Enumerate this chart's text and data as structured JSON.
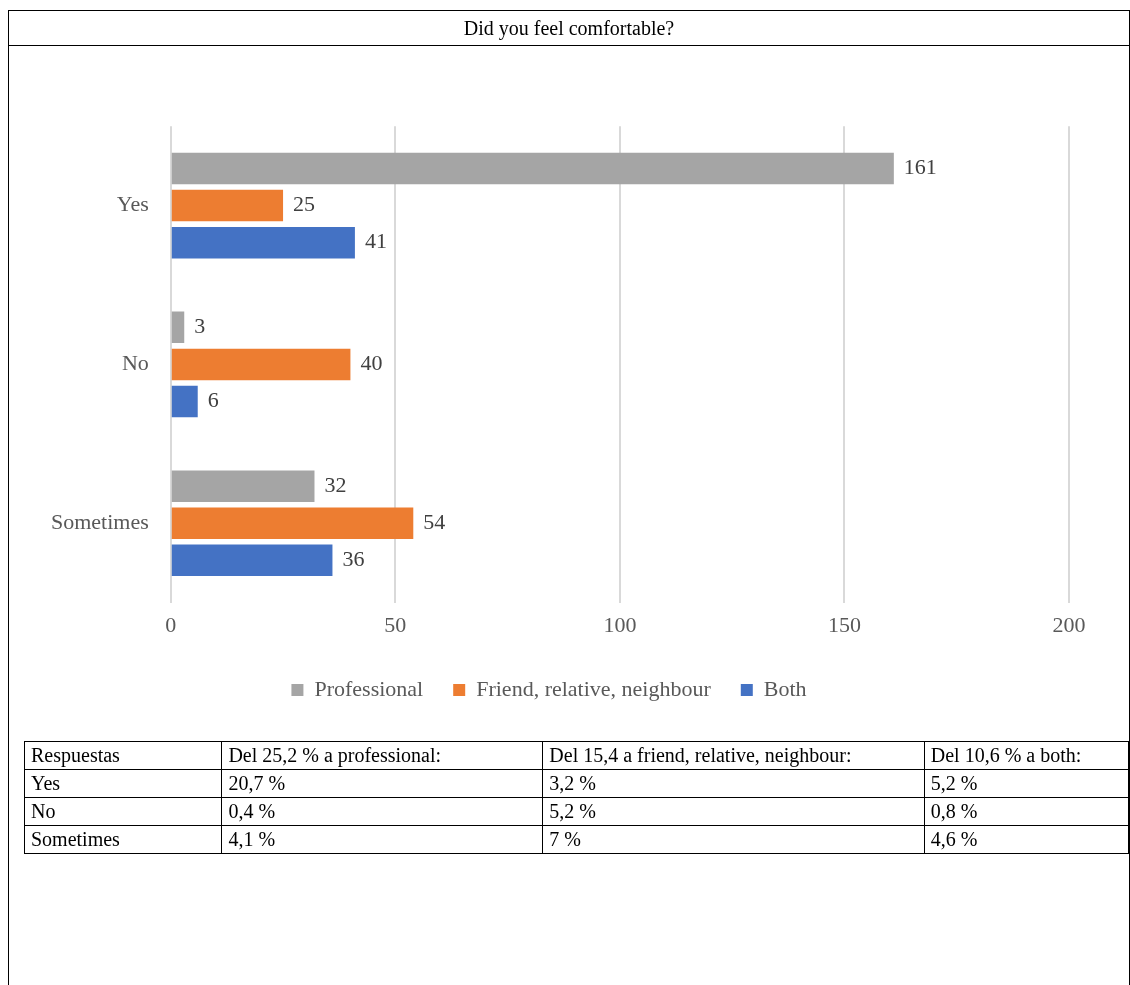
{
  "chart_data": {
    "type": "bar",
    "orientation": "horizontal",
    "title": "Did you feel comfortable?",
    "categories": [
      "Yes",
      "No",
      "Sometimes"
    ],
    "series": [
      {
        "name": "Professional",
        "color": "#a5a5a5",
        "values": [
          161,
          3,
          32
        ]
      },
      {
        "name": "Friend, relative, neighbour",
        "color": "#ed7d31",
        "values": [
          25,
          40,
          54
        ]
      },
      {
        "name": "Both",
        "color": "#4472c4",
        "values": [
          41,
          6,
          36
        ]
      }
    ],
    "xlim": [
      0,
      200
    ],
    "xticks": [
      0,
      50,
      100,
      150,
      200
    ],
    "grid": "x",
    "legend": "bottom",
    "data_labels": true,
    "annotations": [
      "Respuestas",
      "Del 25,2 % a professional:",
      "Del 15,4 a friend, relative, neighbour:",
      "Del 10,6 % a both:",
      "Yes",
      "20,7 %",
      "3,2 %",
      "5,2 %",
      "No",
      "0,4 %",
      "5,2 %",
      "0,8 %",
      "Sometimes",
      "4,1 %",
      "7 %",
      "4,6 %"
    ]
  }
}
